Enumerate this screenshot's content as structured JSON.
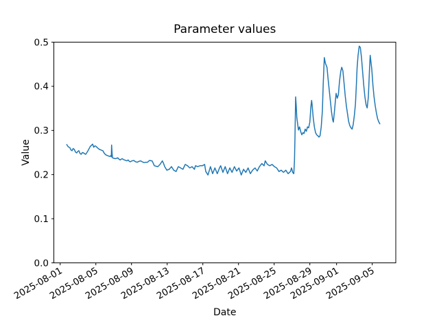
{
  "chart_data": {
    "type": "line",
    "title": "Parameter values",
    "xlabel": "Date",
    "ylabel": "Value",
    "grid": false,
    "legend": null,
    "x_epoch": "2025-08-01",
    "x_unit": "days_since_epoch",
    "xlim_days": [
      -0.71,
      37.64
    ],
    "ylim": [
      0.0,
      0.5
    ],
    "x_ticks": [
      {
        "day": 0,
        "label": "2025-08-01"
      },
      {
        "day": 4,
        "label": "2025-08-05"
      },
      {
        "day": 8,
        "label": "2025-08-09"
      },
      {
        "day": 12,
        "label": "2025-08-13"
      },
      {
        "day": 16,
        "label": "2025-08-17"
      },
      {
        "day": 20,
        "label": "2025-08-21"
      },
      {
        "day": 24,
        "label": "2025-08-25"
      },
      {
        "day": 28,
        "label": "2025-08-29"
      },
      {
        "day": 31,
        "label": "2025-09-01"
      },
      {
        "day": 35,
        "label": "2025-09-05"
      }
    ],
    "y_ticks": [
      {
        "value": 0.0,
        "label": "0.0"
      },
      {
        "value": 0.1,
        "label": "0.1"
      },
      {
        "value": 0.2,
        "label": "0.2"
      },
      {
        "value": 0.3,
        "label": "0.3"
      },
      {
        "value": 0.4,
        "label": "0.4"
      },
      {
        "value": 0.5,
        "label": "0.5"
      }
    ],
    "series": [
      {
        "color": "#1f77b4",
        "line_width": 1.5,
        "points": [
          [
            0.74,
            0.268
          ],
          [
            0.9,
            0.263
          ],
          [
            1.08,
            0.261
          ],
          [
            1.2,
            0.256
          ],
          [
            1.33,
            0.254
          ],
          [
            1.45,
            0.259
          ],
          [
            1.58,
            0.257
          ],
          [
            1.72,
            0.251
          ],
          [
            1.85,
            0.249
          ],
          [
            2.0,
            0.253
          ],
          [
            2.1,
            0.254
          ],
          [
            2.22,
            0.248
          ],
          [
            2.35,
            0.246
          ],
          [
            2.5,
            0.25
          ],
          [
            2.62,
            0.249
          ],
          [
            2.75,
            0.247
          ],
          [
            2.87,
            0.246
          ],
          [
            3.0,
            0.25
          ],
          [
            3.12,
            0.254
          ],
          [
            3.25,
            0.259
          ],
          [
            3.38,
            0.264
          ],
          [
            3.5,
            0.266
          ],
          [
            3.64,
            0.269
          ],
          [
            3.77,
            0.262
          ],
          [
            3.9,
            0.265
          ],
          [
            4.02,
            0.264
          ],
          [
            4.15,
            0.261
          ],
          [
            4.28,
            0.259
          ],
          [
            4.4,
            0.257
          ],
          [
            4.54,
            0.256
          ],
          [
            4.66,
            0.255
          ],
          [
            4.79,
            0.254
          ],
          [
            4.92,
            0.249
          ],
          [
            5.05,
            0.246
          ],
          [
            5.18,
            0.244
          ],
          [
            5.31,
            0.243
          ],
          [
            5.44,
            0.242
          ],
          [
            5.56,
            0.241
          ],
          [
            5.68,
            0.243
          ],
          [
            5.74,
            0.24
          ],
          [
            5.77,
            0.267
          ],
          [
            5.82,
            0.248
          ],
          [
            5.87,
            0.238
          ],
          [
            6.0,
            0.237
          ],
          [
            6.2,
            0.236
          ],
          [
            6.33,
            0.237
          ],
          [
            6.46,
            0.238
          ],
          [
            6.6,
            0.235
          ],
          [
            6.72,
            0.233
          ],
          [
            6.85,
            0.235
          ],
          [
            6.97,
            0.236
          ],
          [
            7.1,
            0.234
          ],
          [
            7.23,
            0.233
          ],
          [
            7.35,
            0.232
          ],
          [
            7.48,
            0.231
          ],
          [
            7.62,
            0.233
          ],
          [
            7.75,
            0.23
          ],
          [
            7.87,
            0.229
          ],
          [
            8.05,
            0.231
          ],
          [
            8.25,
            0.232
          ],
          [
            8.45,
            0.229
          ],
          [
            8.64,
            0.228
          ],
          [
            8.83,
            0.23
          ],
          [
            9.02,
            0.231
          ],
          [
            9.2,
            0.229
          ],
          [
            9.41,
            0.227
          ],
          [
            9.6,
            0.228
          ],
          [
            9.79,
            0.228
          ],
          [
            10.02,
            0.232
          ],
          [
            10.31,
            0.231
          ],
          [
            10.45,
            0.225
          ],
          [
            10.56,
            0.22
          ],
          [
            10.75,
            0.219
          ],
          [
            10.95,
            0.218
          ],
          [
            11.2,
            0.223
          ],
          [
            11.46,
            0.231
          ],
          [
            11.6,
            0.225
          ],
          [
            11.72,
            0.218
          ],
          [
            11.97,
            0.21
          ],
          [
            12.23,
            0.212
          ],
          [
            12.48,
            0.218
          ],
          [
            12.74,
            0.21
          ],
          [
            13.0,
            0.207
          ],
          [
            13.25,
            0.218
          ],
          [
            13.51,
            0.215
          ],
          [
            13.77,
            0.212
          ],
          [
            14.02,
            0.223
          ],
          [
            14.28,
            0.22
          ],
          [
            14.54,
            0.215
          ],
          [
            14.79,
            0.218
          ],
          [
            15.05,
            0.212
          ],
          [
            15.18,
            0.22
          ],
          [
            15.43,
            0.218
          ],
          [
            15.69,
            0.22
          ],
          [
            15.95,
            0.22
          ],
          [
            16.2,
            0.223
          ],
          [
            16.33,
            0.207
          ],
          [
            16.58,
            0.199
          ],
          [
            16.85,
            0.218
          ],
          [
            17.1,
            0.202
          ],
          [
            17.35,
            0.215
          ],
          [
            17.62,
            0.202
          ],
          [
            17.87,
            0.215
          ],
          [
            18.0,
            0.22
          ],
          [
            18.25,
            0.205
          ],
          [
            18.51,
            0.218
          ],
          [
            18.77,
            0.202
          ],
          [
            19.02,
            0.215
          ],
          [
            19.28,
            0.205
          ],
          [
            19.54,
            0.218
          ],
          [
            19.79,
            0.208
          ],
          [
            20.05,
            0.215
          ],
          [
            20.31,
            0.199
          ],
          [
            20.56,
            0.212
          ],
          [
            20.82,
            0.205
          ],
          [
            21.08,
            0.215
          ],
          [
            21.33,
            0.202
          ],
          [
            21.58,
            0.21
          ],
          [
            21.85,
            0.215
          ],
          [
            22.1,
            0.208
          ],
          [
            22.35,
            0.218
          ],
          [
            22.62,
            0.225
          ],
          [
            22.87,
            0.22
          ],
          [
            23.0,
            0.231
          ],
          [
            23.25,
            0.223
          ],
          [
            23.51,
            0.22
          ],
          [
            23.77,
            0.223
          ],
          [
            24.02,
            0.218
          ],
          [
            24.28,
            0.215
          ],
          [
            24.54,
            0.207
          ],
          [
            24.79,
            0.21
          ],
          [
            25.05,
            0.205
          ],
          [
            25.31,
            0.21
          ],
          [
            25.56,
            0.202
          ],
          [
            25.82,
            0.207
          ],
          [
            25.95,
            0.215
          ],
          [
            26.08,
            0.205
          ],
          [
            26.2,
            0.202
          ],
          [
            26.28,
            0.231
          ],
          [
            26.33,
            0.282
          ],
          [
            26.41,
            0.376
          ],
          [
            26.48,
            0.355
          ],
          [
            26.54,
            0.329
          ],
          [
            26.64,
            0.314
          ],
          [
            26.72,
            0.301
          ],
          [
            26.85,
            0.308
          ],
          [
            26.97,
            0.298
          ],
          [
            27.1,
            0.29
          ],
          [
            27.23,
            0.295
          ],
          [
            27.35,
            0.293
          ],
          [
            27.48,
            0.303
          ],
          [
            27.61,
            0.298
          ],
          [
            27.74,
            0.308
          ],
          [
            27.87,
            0.306
          ],
          [
            28.0,
            0.319
          ],
          [
            28.12,
            0.355
          ],
          [
            28.2,
            0.368
          ],
          [
            28.25,
            0.36
          ],
          [
            28.38,
            0.329
          ],
          [
            28.51,
            0.308
          ],
          [
            28.64,
            0.295
          ],
          [
            28.77,
            0.29
          ],
          [
            28.89,
            0.288
          ],
          [
            29.02,
            0.285
          ],
          [
            29.15,
            0.288
          ],
          [
            29.28,
            0.308
          ],
          [
            29.41,
            0.345
          ],
          [
            29.5,
            0.405
          ],
          [
            29.62,
            0.465
          ],
          [
            29.75,
            0.452
          ],
          [
            29.92,
            0.443
          ],
          [
            30.05,
            0.417
          ],
          [
            30.18,
            0.391
          ],
          [
            30.31,
            0.366
          ],
          [
            30.43,
            0.342
          ],
          [
            30.56,
            0.324
          ],
          [
            30.64,
            0.319
          ],
          [
            30.77,
            0.345
          ],
          [
            30.87,
            0.368
          ],
          [
            30.95,
            0.384
          ],
          [
            31.08,
            0.373
          ],
          [
            31.2,
            0.381
          ],
          [
            31.33,
            0.412
          ],
          [
            31.46,
            0.433
          ],
          [
            31.58,
            0.443
          ],
          [
            31.71,
            0.435
          ],
          [
            31.84,
            0.407
          ],
          [
            31.97,
            0.378
          ],
          [
            32.1,
            0.355
          ],
          [
            32.23,
            0.337
          ],
          [
            32.35,
            0.321
          ],
          [
            32.48,
            0.311
          ],
          [
            32.61,
            0.306
          ],
          [
            32.74,
            0.303
          ],
          [
            32.86,
            0.313
          ],
          [
            32.99,
            0.334
          ],
          [
            33.12,
            0.36
          ],
          [
            33.22,
            0.402
          ],
          [
            33.3,
            0.442
          ],
          [
            33.41,
            0.47
          ],
          [
            33.54,
            0.491
          ],
          [
            33.66,
            0.488
          ],
          [
            33.79,
            0.465
          ],
          [
            33.92,
            0.434
          ],
          [
            34.05,
            0.402
          ],
          [
            34.18,
            0.376
          ],
          [
            34.31,
            0.358
          ],
          [
            34.43,
            0.351
          ],
          [
            34.56,
            0.376
          ],
          [
            34.69,
            0.439
          ],
          [
            34.77,
            0.47
          ],
          [
            34.95,
            0.439
          ],
          [
            35.08,
            0.402
          ],
          [
            35.2,
            0.376
          ],
          [
            35.33,
            0.356
          ],
          [
            35.46,
            0.34
          ],
          [
            35.59,
            0.327
          ],
          [
            35.72,
            0.32
          ],
          [
            35.85,
            0.315
          ]
        ]
      }
    ],
    "colors": {
      "line": "#1f77b4",
      "spine": "#000000",
      "background": "#ffffff"
    }
  }
}
